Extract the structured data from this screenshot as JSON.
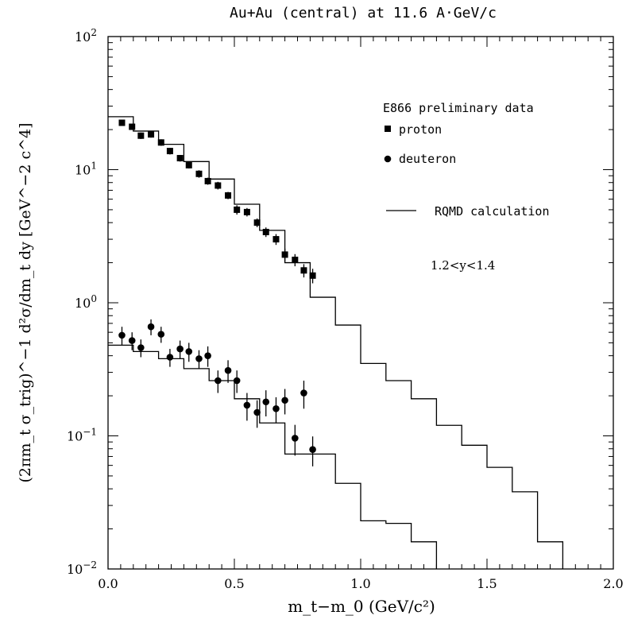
{
  "chart_data": {
    "type": "scatter",
    "title": "Au+Au (central) at 11.6 A·GeV/c",
    "xlabel": "m_t−m_0 (GeV/c²)",
    "ylabel": "(2πm_t σ_trig)^−1 d²σ/dm_t dy [GeV^−2 c^4]",
    "xlim": [
      0,
      2.0
    ],
    "ylim": [
      0.01,
      100
    ],
    "yscale": "log",
    "grid": false,
    "legend_position": "top-right",
    "x_ticks": [
      "0.0",
      "0.5",
      "1.0",
      "1.5",
      "2.0"
    ],
    "y_ticks": [
      {
        "base": "10",
        "exp": "−2"
      },
      {
        "base": "10",
        "exp": "−1"
      },
      {
        "base": "10",
        "exp": "0"
      },
      {
        "base": "10",
        "exp": "1"
      },
      {
        "base": "10",
        "exp": "2"
      }
    ],
    "legend": {
      "header": "E866 preliminary data",
      "proton_label": "proton",
      "deuteron_label": "deuteron",
      "rqmd_label": "RQMD calculation"
    },
    "annotation": "1.2<y<1.4",
    "series": [
      {
        "name": "proton",
        "marker": "square",
        "x": [
          0.055,
          0.095,
          0.13,
          0.17,
          0.21,
          0.245,
          0.285,
          0.32,
          0.36,
          0.395,
          0.435,
          0.475,
          0.51,
          0.55,
          0.59,
          0.625,
          0.665,
          0.7,
          0.74,
          0.775,
          0.81
        ],
        "y": [
          22.5,
          21.0,
          18.0,
          18.4,
          16.0,
          13.8,
          12.2,
          10.8,
          9.3,
          8.2,
          7.6,
          6.4,
          5.0,
          4.8,
          4.0,
          3.4,
          3.0,
          2.3,
          2.1,
          1.75,
          1.6
        ],
        "err": [
          1.2,
          1.1,
          1.0,
          1.0,
          0.9,
          0.8,
          0.7,
          0.6,
          0.6,
          0.5,
          0.5,
          0.4,
          0.4,
          0.35,
          0.3,
          0.28,
          0.28,
          0.25,
          0.22,
          0.2,
          0.2
        ]
      },
      {
        "name": "deuteron",
        "marker": "circle",
        "x": [
          0.055,
          0.095,
          0.13,
          0.17,
          0.21,
          0.245,
          0.285,
          0.32,
          0.36,
          0.395,
          0.435,
          0.475,
          0.51,
          0.55,
          0.59,
          0.625,
          0.665,
          0.7,
          0.74,
          0.775,
          0.81
        ],
        "y": [
          0.57,
          0.52,
          0.46,
          0.66,
          0.58,
          0.39,
          0.45,
          0.43,
          0.38,
          0.4,
          0.26,
          0.31,
          0.26,
          0.17,
          0.15,
          0.18,
          0.16,
          0.185,
          0.096,
          0.21,
          0.079
        ],
        "err": [
          0.09,
          0.08,
          0.07,
          0.09,
          0.08,
          0.06,
          0.07,
          0.07,
          0.06,
          0.07,
          0.05,
          0.06,
          0.05,
          0.04,
          0.035,
          0.04,
          0.035,
          0.04,
          0.025,
          0.05,
          0.02
        ]
      },
      {
        "name": "RQMD calculation",
        "style": "histogram",
        "group": "proton",
        "edges": [
          0.0,
          0.1,
          0.2,
          0.3,
          0.4,
          0.5,
          0.6,
          0.7,
          0.8,
          0.9,
          1.0,
          1.1,
          1.2,
          1.3,
          1.4,
          1.5,
          1.6,
          1.7,
          1.8
        ],
        "values": [
          25.0,
          19.5,
          15.5,
          11.5,
          8.5,
          5.5,
          3.5,
          2.0,
          1.1,
          0.68,
          0.35,
          0.26,
          0.19,
          0.12,
          0.085,
          0.058,
          0.038,
          0.016
        ]
      },
      {
        "name": "RQMD calculation",
        "style": "histogram",
        "group": "deuteron",
        "edges": [
          0.0,
          0.1,
          0.2,
          0.3,
          0.4,
          0.5,
          0.6,
          0.7,
          0.8,
          0.9,
          1.0,
          1.1,
          1.2,
          1.3
        ],
        "values": [
          0.48,
          0.43,
          0.38,
          0.32,
          0.26,
          0.19,
          0.125,
          0.073,
          0.073,
          0.044,
          0.023,
          0.022,
          0.016
        ]
      }
    ]
  }
}
